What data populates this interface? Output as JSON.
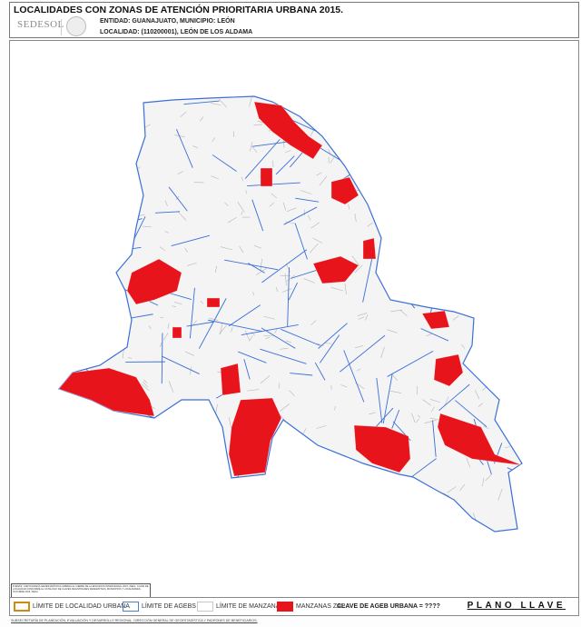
{
  "header": {
    "title": "LOCALIDADES CON ZONAS DE ATENCIÓN PRIORITARIA URBANA 2015.",
    "logo": "SEDESOL",
    "entidad": "ENTIDAD: GUANAJUATO, MUNICIPIO: LEÓN",
    "localidad": "LOCALIDAD: (110200001), LEÓN DE LOS ALDAMA"
  },
  "fuente": "FUENTE: CARTOGRAFÍA GEOESTADÍSTICA URBANA AL CIERRE DE LA ENCUESTA INTERCENSAL 2015, INEGI. CLAVE DE LOCALIDAD CONFORME AL CATÁLOGO DE CLAVES DE ENTIDADES FEDERATIVAS, MUNICIPIOS Y LOCALIDADES, OCTUBRE 2015, INEGI.",
  "legend": {
    "items": [
      {
        "label": "LÍMITE DE LOCALIDAD URBANA",
        "color": "#d08a10",
        "type": "outline"
      },
      {
        "label": "LÍMITE DE AGEBS",
        "color": "#4a7fd6",
        "type": "outline"
      },
      {
        "label": "LÍMITE DE MANZANAS",
        "color": "#c8c8c8",
        "type": "outline"
      },
      {
        "label": "MANZANAS ZAP",
        "color": "#e8141c",
        "type": "fill"
      }
    ],
    "clave": "CLAVE DE AGEB URBANA = ????",
    "plano": "PLANO LLAVE"
  },
  "footer": "SUBSECRETARÍA DE PLANEACIÓN, EVALUACIÓN Y DESARROLLO REGIONAL. DIRECCIÓN GENERAL DE GEOESTADÍSTICA Y PADRONES DE BENEFICIARIOS.",
  "colors": {
    "ageb": "#3a6fd8",
    "manzana": "#b5b5b5",
    "zap": "#e8141c",
    "locality": "#d08a10"
  }
}
